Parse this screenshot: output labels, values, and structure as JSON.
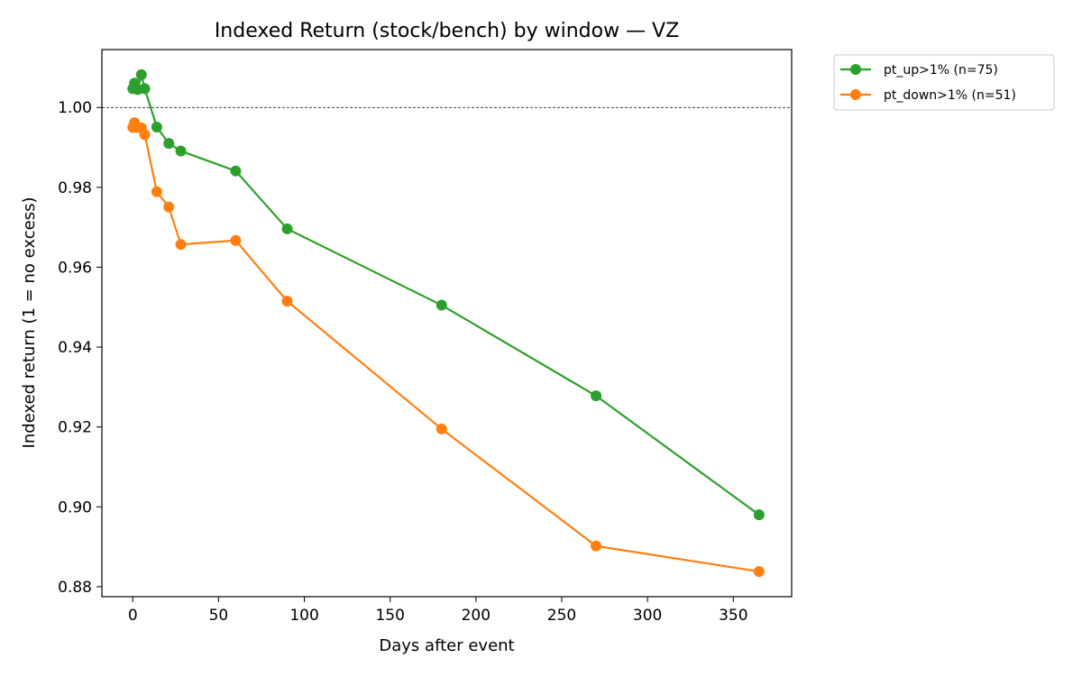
{
  "chart_data": {
    "type": "line",
    "title": "Indexed Return (stock/bench) by window — VZ",
    "xlabel": "Days after event",
    "ylabel": "Indexed return (1 = no excess)",
    "xlim": [
      -18,
      384
    ],
    "ylim": [
      0.8775,
      1.0145
    ],
    "xticks": [
      0,
      50,
      100,
      150,
      200,
      250,
      300,
      350
    ],
    "yticks": [
      0.88,
      0.9,
      0.92,
      0.94,
      0.96,
      0.98,
      1.0
    ],
    "ytick_labels": [
      "0.88",
      "0.90",
      "0.92",
      "0.94",
      "0.96",
      "0.98",
      "1.00"
    ],
    "reference_line": 1.0,
    "grid": false,
    "legend_position": "outside-top-right",
    "series": [
      {
        "name": "pt_up>1% (n=75)",
        "color": "#2ca02c",
        "x": [
          0,
          1,
          3,
          5,
          7,
          14,
          21,
          28,
          60,
          90,
          180,
          270,
          365
        ],
        "y": [
          1.0047,
          1.0061,
          1.0045,
          1.0082,
          1.0047,
          0.9951,
          0.991,
          0.9891,
          0.9841,
          0.9696,
          0.9505,
          0.9278,
          0.898
        ]
      },
      {
        "name": "pt_down>1% (n=51)",
        "color": "#ff7f0e",
        "x": [
          0,
          1,
          3,
          5,
          7,
          14,
          21,
          28,
          60,
          90,
          180,
          270,
          365
        ],
        "y": [
          0.995,
          0.9962,
          0.995,
          0.9949,
          0.9932,
          0.9789,
          0.9751,
          0.9657,
          0.9667,
          0.9515,
          0.9195,
          0.8902,
          0.8838
        ]
      }
    ]
  }
}
